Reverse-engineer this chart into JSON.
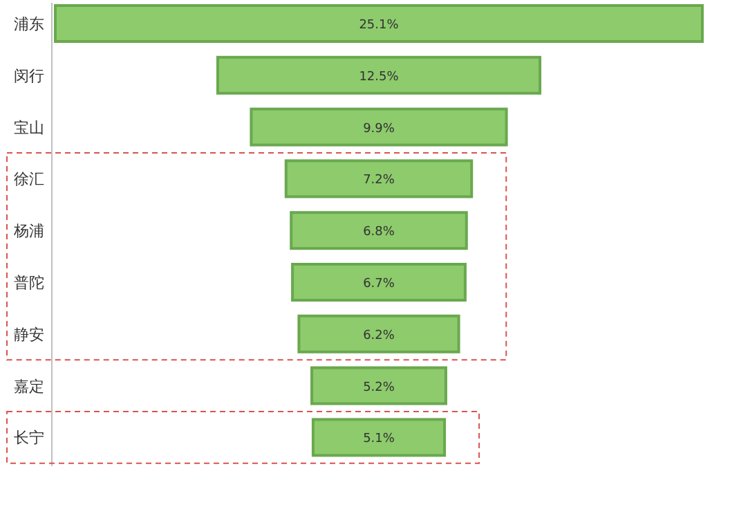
{
  "chart_data": {
    "type": "other",
    "categories": [
      "浦东",
      "闵行",
      "宝山",
      "徐汇",
      "杨浦",
      "普陀",
      "静安",
      "嘉定",
      "长宁"
    ],
    "values": [
      25.1,
      12.5,
      9.9,
      7.2,
      6.8,
      6.7,
      6.2,
      5.2,
      5.1
    ],
    "value_labels": [
      "25.1%",
      "12.5%",
      "9.9%",
      "7.2%",
      "6.8%",
      "6.7%",
      "6.2%",
      "5.2%",
      "5.1%"
    ],
    "color": "#8dcb6c"
  }
}
